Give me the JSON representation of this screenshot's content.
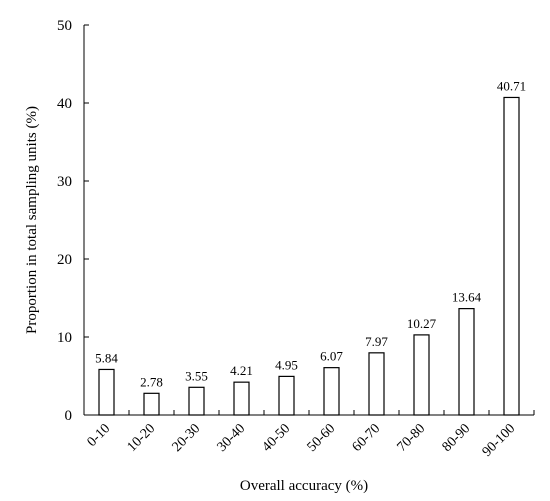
{
  "chart_data": {
    "type": "bar",
    "categories": [
      "0-10",
      "10-20",
      "20-30",
      "30-40",
      "40-50",
      "50-60",
      "60-70",
      "70-80",
      "80-90",
      "90-100"
    ],
    "values": [
      5.84,
      2.78,
      3.55,
      4.21,
      4.95,
      6.07,
      7.97,
      10.27,
      13.64,
      40.71
    ],
    "data_labels": [
      "5.84",
      "2.78",
      "3.55",
      "4.21",
      "4.95",
      "6.07",
      "7.97",
      "10.27",
      "13.64",
      "40.71"
    ],
    "xlabel": "Overall accuracy (%)",
    "ylabel": "Proportion in total sampling units (%)",
    "ylim": [
      0,
      50
    ],
    "yticks": [
      "0",
      "10",
      "20",
      "30",
      "40",
      "50"
    ],
    "grid": false,
    "bar_fill": "#ffffff",
    "bar_stroke": "#000000"
  }
}
